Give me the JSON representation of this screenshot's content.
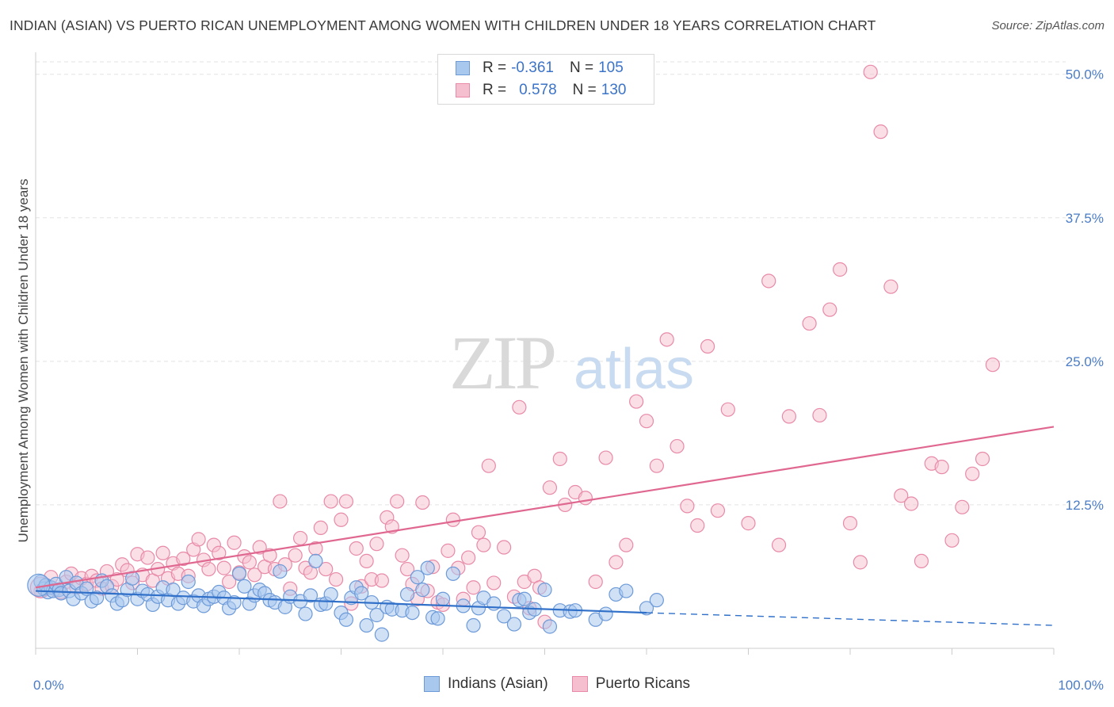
{
  "title": "INDIAN (ASIAN) VS PUERTO RICAN UNEMPLOYMENT AMONG WOMEN WITH CHILDREN UNDER 18 YEARS CORRELATION CHART",
  "source": "Source: ZipAtlas.com",
  "watermark": {
    "zip": "ZIP",
    "atlas": "atlas"
  },
  "legend": {
    "rows": [
      {
        "r_label": "R =",
        "r_value": "-0.361",
        "n_label": "N =",
        "n_value": "105"
      },
      {
        "r_label": "R =",
        "r_value": "0.578",
        "n_label": "N =",
        "n_value": "130"
      }
    ]
  },
  "colors": {
    "blue_fill": "#a9c8ee",
    "blue_stroke": "#6d9ad8",
    "blue_line": "#3070c8",
    "pink_fill": "#f6bfd0",
    "pink_stroke": "#e88aa8",
    "pink_line": "#e06890",
    "tick_label": "#4a7cc7",
    "grid": "#e3e3e3"
  },
  "chart_data": {
    "type": "scatter",
    "title": "INDIAN (ASIAN) VS PUERTO RICAN UNEMPLOYMENT AMONG WOMEN WITH CHILDREN UNDER 18 YEARS CORRELATION CHART",
    "xlabel": "",
    "ylabel": "Unemployment Among Women with Children Under 18 years",
    "xlim": [
      0,
      100
    ],
    "ylim": [
      0,
      51.5
    ],
    "x_tick_labels": [
      "0.0%",
      "100.0%"
    ],
    "y_ticks": [
      12.5,
      25.0,
      37.5,
      50.0
    ],
    "y_tick_labels": [
      "12.5%",
      "25.0%",
      "37.5%",
      "50.0%"
    ],
    "grid": "horizontal dashed",
    "legend_position": "top-center",
    "series": [
      {
        "name": "Indians (Asian)",
        "r": -0.361,
        "n": 105,
        "trend": {
          "x_start": 0,
          "y_start": 5.0,
          "x_solid_end": 60,
          "y_solid_end": 3.1,
          "x_end": 100,
          "y_end": 2.0
        },
        "points": [
          [
            0.5,
            5.8
          ],
          [
            0.8,
            5.2
          ],
          [
            1.0,
            5.5
          ],
          [
            1.2,
            4.9
          ],
          [
            1.5,
            5.3
          ],
          [
            1.7,
            5.0
          ],
          [
            2.0,
            5.6
          ],
          [
            2.3,
            5.1
          ],
          [
            2.5,
            4.8
          ],
          [
            3.0,
            6.2
          ],
          [
            3.3,
            5.0
          ],
          [
            3.7,
            4.3
          ],
          [
            4.0,
            5.7
          ],
          [
            4.5,
            4.8
          ],
          [
            5.0,
            5.2
          ],
          [
            5.5,
            4.1
          ],
          [
            6.0,
            4.4
          ],
          [
            6.5,
            5.9
          ],
          [
            7.0,
            5.4
          ],
          [
            7.5,
            4.6
          ],
          [
            8.0,
            3.9
          ],
          [
            8.5,
            4.2
          ],
          [
            9.0,
            5.1
          ],
          [
            9.5,
            6.1
          ],
          [
            10.0,
            4.3
          ],
          [
            10.5,
            5.0
          ],
          [
            11.0,
            4.7
          ],
          [
            11.5,
            3.8
          ],
          [
            12.0,
            4.5
          ],
          [
            12.5,
            5.3
          ],
          [
            13.0,
            4.2
          ],
          [
            13.5,
            5.1
          ],
          [
            14.0,
            3.9
          ],
          [
            14.5,
            4.4
          ],
          [
            15.0,
            5.8
          ],
          [
            15.5,
            4.1
          ],
          [
            16.0,
            4.6
          ],
          [
            16.5,
            3.7
          ],
          [
            17.0,
            4.3
          ],
          [
            17.5,
            4.5
          ],
          [
            18.0,
            4.9
          ],
          [
            18.5,
            4.4
          ],
          [
            19.0,
            3.5
          ],
          [
            19.5,
            4.0
          ],
          [
            20.0,
            6.5
          ],
          [
            20.5,
            5.4
          ],
          [
            21.0,
            3.9
          ],
          [
            21.5,
            4.6
          ],
          [
            22.0,
            5.1
          ],
          [
            22.5,
            4.8
          ],
          [
            23.0,
            4.2
          ],
          [
            23.5,
            4.0
          ],
          [
            24.0,
            6.7
          ],
          [
            24.5,
            3.6
          ],
          [
            25.0,
            4.5
          ],
          [
            26.0,
            4.1
          ],
          [
            26.5,
            3.0
          ],
          [
            27.0,
            4.6
          ],
          [
            27.5,
            7.6
          ],
          [
            28.0,
            3.8
          ],
          [
            28.5,
            3.9
          ],
          [
            29.0,
            4.7
          ],
          [
            30.0,
            3.1
          ],
          [
            30.5,
            2.5
          ],
          [
            31.0,
            4.4
          ],
          [
            31.5,
            5.3
          ],
          [
            32.0,
            4.8
          ],
          [
            32.5,
            2.0
          ],
          [
            33.0,
            4.0
          ],
          [
            33.5,
            2.9
          ],
          [
            34.0,
            1.2
          ],
          [
            34.5,
            3.6
          ],
          [
            35.0,
            3.4
          ],
          [
            36.0,
            3.3
          ],
          [
            36.5,
            4.7
          ],
          [
            37.0,
            3.1
          ],
          [
            37.5,
            6.2
          ],
          [
            38.0,
            5.1
          ],
          [
            38.5,
            7.0
          ],
          [
            39.0,
            2.7
          ],
          [
            39.5,
            2.6
          ],
          [
            40.0,
            4.3
          ],
          [
            41.0,
            6.5
          ],
          [
            42.0,
            3.7
          ],
          [
            43.0,
            2.0
          ],
          [
            43.5,
            3.5
          ],
          [
            44.0,
            4.4
          ],
          [
            45.0,
            3.9
          ],
          [
            46.0,
            2.8
          ],
          [
            47.0,
            2.1
          ],
          [
            47.5,
            4.2
          ],
          [
            48.0,
            4.3
          ],
          [
            48.5,
            3.1
          ],
          [
            49.0,
            3.4
          ],
          [
            50.0,
            5.1
          ],
          [
            50.5,
            1.9
          ],
          [
            51.5,
            3.3
          ],
          [
            52.5,
            3.2
          ],
          [
            53.0,
            3.3
          ],
          [
            55.0,
            2.5
          ],
          [
            56.0,
            3.0
          ],
          [
            57.0,
            4.7
          ],
          [
            58.0,
            5.0
          ],
          [
            60.0,
            3.5
          ],
          [
            61.0,
            4.2
          ]
        ]
      },
      {
        "name": "Puerto Ricans",
        "r": 0.578,
        "n": 130,
        "trend": {
          "x_start": 0,
          "y_start": 5.3,
          "x_end": 100,
          "y_end": 19.3
        },
        "points": [
          [
            0.5,
            5.0
          ],
          [
            1.0,
            5.5
          ],
          [
            1.5,
            6.2
          ],
          [
            2.0,
            5.1
          ],
          [
            2.5,
            4.9
          ],
          [
            3.0,
            5.8
          ],
          [
            3.5,
            6.5
          ],
          [
            4.0,
            5.3
          ],
          [
            4.5,
            6.1
          ],
          [
            5.0,
            5.6
          ],
          [
            5.5,
            6.3
          ],
          [
            6.0,
            5.9
          ],
          [
            6.5,
            5.2
          ],
          [
            7.0,
            6.7
          ],
          [
            7.5,
            5.4
          ],
          [
            8.0,
            6.0
          ],
          [
            8.5,
            7.3
          ],
          [
            9.0,
            6.8
          ],
          [
            9.5,
            5.7
          ],
          [
            10.0,
            8.2
          ],
          [
            10.5,
            6.4
          ],
          [
            11.0,
            7.9
          ],
          [
            11.5,
            5.9
          ],
          [
            12.0,
            6.9
          ],
          [
            12.5,
            8.3
          ],
          [
            13.0,
            6.1
          ],
          [
            13.5,
            7.4
          ],
          [
            14.0,
            6.5
          ],
          [
            14.5,
            7.8
          ],
          [
            15.0,
            6.3
          ],
          [
            15.5,
            8.6
          ],
          [
            16.0,
            9.5
          ],
          [
            16.5,
            7.7
          ],
          [
            17.0,
            6.9
          ],
          [
            17.5,
            9.0
          ],
          [
            18.0,
            8.3
          ],
          [
            18.5,
            7.0
          ],
          [
            19.0,
            5.8
          ],
          [
            19.5,
            9.2
          ],
          [
            20.0,
            6.6
          ],
          [
            20.5,
            8.0
          ],
          [
            21.0,
            7.5
          ],
          [
            21.5,
            6.4
          ],
          [
            22.0,
            8.8
          ],
          [
            22.5,
            7.1
          ],
          [
            23.0,
            8.1
          ],
          [
            23.5,
            6.9
          ],
          [
            24.0,
            12.8
          ],
          [
            24.5,
            7.3
          ],
          [
            25.0,
            5.2
          ],
          [
            25.5,
            8.1
          ],
          [
            26.0,
            9.6
          ],
          [
            26.5,
            7.0
          ],
          [
            27.0,
            6.6
          ],
          [
            27.5,
            8.7
          ],
          [
            28.0,
            10.5
          ],
          [
            28.5,
            6.9
          ],
          [
            29.0,
            12.8
          ],
          [
            29.5,
            6.0
          ],
          [
            30.0,
            11.2
          ],
          [
            30.5,
            12.8
          ],
          [
            31.0,
            3.9
          ],
          [
            31.5,
            8.7
          ],
          [
            32.0,
            5.4
          ],
          [
            32.5,
            7.6
          ],
          [
            33.0,
            6.0
          ],
          [
            33.5,
            9.1
          ],
          [
            34.0,
            5.9
          ],
          [
            34.5,
            11.4
          ],
          [
            35.0,
            10.6
          ],
          [
            35.5,
            12.8
          ],
          [
            36.0,
            8.1
          ],
          [
            36.5,
            6.9
          ],
          [
            37.0,
            5.6
          ],
          [
            37.5,
            4.3
          ],
          [
            38.0,
            12.7
          ],
          [
            38.5,
            5.0
          ],
          [
            39.0,
            7.1
          ],
          [
            39.5,
            4.0
          ],
          [
            40.0,
            3.8
          ],
          [
            40.5,
            8.5
          ],
          [
            41.0,
            11.2
          ],
          [
            41.5,
            7.0
          ],
          [
            42.0,
            4.3
          ],
          [
            42.5,
            7.9
          ],
          [
            43.0,
            5.3
          ],
          [
            43.5,
            10.1
          ],
          [
            44.0,
            9.0
          ],
          [
            44.5,
            15.9
          ],
          [
            45.0,
            5.7
          ],
          [
            46.0,
            8.8
          ],
          [
            47.0,
            4.5
          ],
          [
            47.5,
            21.0
          ],
          [
            48.0,
            5.8
          ],
          [
            48.5,
            3.5
          ],
          [
            49.0,
            6.3
          ],
          [
            49.5,
            5.3
          ],
          [
            50.0,
            2.3
          ],
          [
            50.5,
            14.0
          ],
          [
            51.5,
            16.5
          ],
          [
            52.0,
            12.5
          ],
          [
            53.0,
            13.6
          ],
          [
            54.0,
            13.1
          ],
          [
            55.0,
            5.8
          ],
          [
            56.0,
            16.6
          ],
          [
            57.0,
            7.5
          ],
          [
            58.0,
            9.0
          ],
          [
            59.0,
            21.5
          ],
          [
            60.0,
            19.8
          ],
          [
            61.0,
            15.9
          ],
          [
            62.0,
            26.9
          ],
          [
            63.0,
            17.6
          ],
          [
            64.0,
            12.4
          ],
          [
            65.0,
            10.7
          ],
          [
            66.0,
            26.3
          ],
          [
            67.0,
            12.0
          ],
          [
            68.0,
            20.8
          ],
          [
            70.0,
            10.9
          ],
          [
            72.0,
            32.0
          ],
          [
            73.0,
            9.0
          ],
          [
            74.0,
            20.2
          ],
          [
            76.0,
            28.3
          ],
          [
            77.0,
            20.3
          ],
          [
            78.0,
            29.5
          ],
          [
            79.0,
            33.0
          ],
          [
            80.0,
            10.9
          ],
          [
            81.0,
            7.5
          ],
          [
            82.0,
            50.2
          ],
          [
            83.0,
            45.0
          ],
          [
            84.0,
            31.5
          ],
          [
            85.0,
            13.3
          ],
          [
            86.0,
            12.6
          ],
          [
            87.0,
            7.6
          ],
          [
            88.0,
            16.1
          ],
          [
            89.0,
            15.8
          ],
          [
            90.0,
            9.4
          ],
          [
            91.0,
            12.3
          ],
          [
            92.0,
            15.2
          ],
          [
            93.0,
            16.5
          ],
          [
            94.0,
            24.7
          ]
        ]
      }
    ]
  },
  "bottom_legend": [
    {
      "label": "Indians (Asian)"
    },
    {
      "label": "Puerto Ricans"
    }
  ]
}
